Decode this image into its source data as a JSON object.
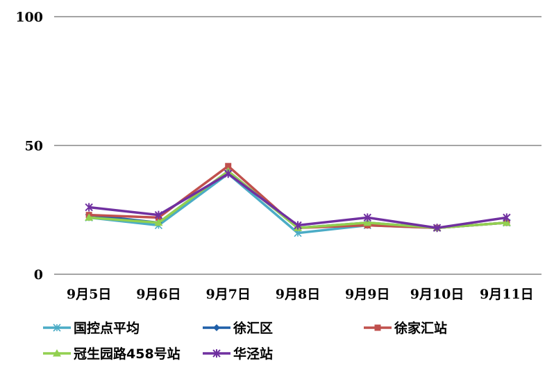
{
  "chart_data": {
    "type": "line",
    "title": "",
    "xlabel": "",
    "ylabel": "",
    "categories": [
      "9月5日",
      "9月6日",
      "9月7日",
      "9月8日",
      "9月9日",
      "9月10日",
      "9月11日"
    ],
    "ylim": [
      0,
      100
    ],
    "yticks": [
      0,
      50,
      100
    ],
    "grid": true,
    "legend_position": "bottom",
    "series": [
      {
        "name": "国控点平均",
        "color": "#4bacc6",
        "marker": "asterisk",
        "values": [
          22,
          19,
          39,
          16,
          19,
          18,
          20
        ]
      },
      {
        "name": "徐汇区",
        "color": "#1f5fa8",
        "marker": "diamond",
        "values": [
          23,
          20,
          40,
          18,
          20,
          18,
          20
        ]
      },
      {
        "name": "徐家汇站",
        "color": "#c0504d",
        "marker": "square",
        "values": [
          23,
          22,
          42,
          18,
          19,
          18,
          20
        ]
      },
      {
        "name": "冠生园路458号站",
        "color": "#92d050",
        "marker": "triangle",
        "values": [
          22,
          20,
          40,
          18,
          20,
          18,
          20
        ]
      },
      {
        "name": "华泾站",
        "color": "#7030a0",
        "marker": "star",
        "values": [
          26,
          23,
          39,
          19,
          22,
          18,
          22
        ]
      }
    ]
  }
}
